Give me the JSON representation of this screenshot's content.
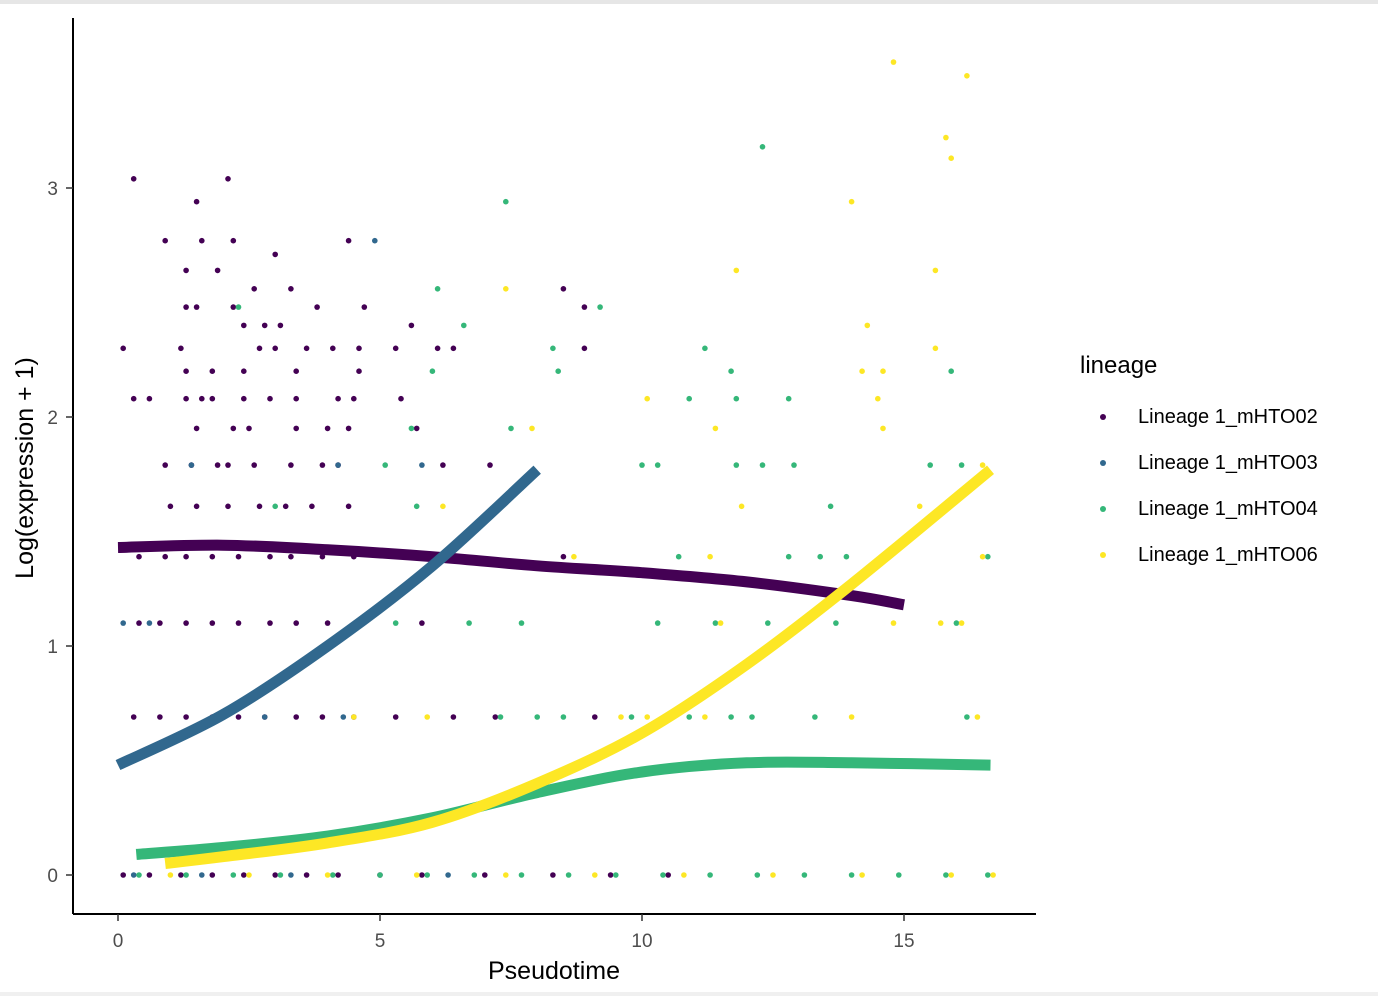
{
  "chart_data": {
    "type": "scatter",
    "title": "",
    "xlabel": "Pseudotime",
    "ylabel": "Log(expression + 1)",
    "xlim": [
      -0.85,
      17.4
    ],
    "ylim": [
      -0.17,
      3.73
    ],
    "x_ticks": [
      0,
      5,
      10,
      15
    ],
    "y_ticks": [
      0,
      1,
      2,
      3
    ],
    "grid": false,
    "legend": {
      "title": "lineage",
      "position": "right"
    },
    "series": [
      {
        "name": "Lineage 1_mHTO02",
        "color": "#440154",
        "points": [
          [
            0.3,
            3.04
          ],
          [
            1.5,
            2.94
          ],
          [
            2.1,
            3.04
          ],
          [
            0.9,
            2.77
          ],
          [
            1.6,
            2.77
          ],
          [
            2.2,
            2.77
          ],
          [
            3.0,
            2.71
          ],
          [
            1.3,
            2.64
          ],
          [
            1.9,
            2.64
          ],
          [
            2.6,
            2.56
          ],
          [
            3.3,
            2.56
          ],
          [
            4.4,
            2.77
          ],
          [
            1.3,
            2.48
          ],
          [
            1.5,
            2.48
          ],
          [
            2.2,
            2.48
          ],
          [
            3.8,
            2.48
          ],
          [
            4.7,
            2.48
          ],
          [
            8.5,
            2.56
          ],
          [
            8.9,
            2.48
          ],
          [
            0.1,
            2.3
          ],
          [
            1.2,
            2.3
          ],
          [
            2.4,
            2.4
          ],
          [
            2.8,
            2.4
          ],
          [
            3.1,
            2.4
          ],
          [
            2.7,
            2.3
          ],
          [
            3.0,
            2.3
          ],
          [
            3.6,
            2.3
          ],
          [
            4.1,
            2.3
          ],
          [
            4.6,
            2.3
          ],
          [
            5.3,
            2.3
          ],
          [
            6.4,
            2.3
          ],
          [
            8.9,
            2.3
          ],
          [
            5.6,
            2.4
          ],
          [
            6.1,
            2.3
          ],
          [
            1.3,
            2.2
          ],
          [
            1.8,
            2.2
          ],
          [
            2.4,
            2.2
          ],
          [
            3.4,
            2.2
          ],
          [
            4.6,
            2.2
          ],
          [
            0.3,
            2.08
          ],
          [
            0.6,
            2.08
          ],
          [
            1.3,
            2.08
          ],
          [
            1.6,
            2.08
          ],
          [
            1.8,
            2.08
          ],
          [
            2.4,
            2.08
          ],
          [
            2.9,
            2.08
          ],
          [
            3.4,
            2.08
          ],
          [
            4.2,
            2.08
          ],
          [
            4.5,
            2.08
          ],
          [
            5.4,
            2.08
          ],
          [
            1.5,
            1.95
          ],
          [
            2.2,
            1.95
          ],
          [
            2.5,
            1.95
          ],
          [
            3.4,
            1.95
          ],
          [
            4.0,
            1.95
          ],
          [
            4.4,
            1.95
          ],
          [
            5.7,
            1.95
          ],
          [
            0.9,
            1.79
          ],
          [
            1.4,
            1.79
          ],
          [
            1.9,
            1.79
          ],
          [
            2.1,
            1.79
          ],
          [
            2.6,
            1.79
          ],
          [
            3.3,
            1.79
          ],
          [
            3.9,
            1.79
          ],
          [
            4.2,
            1.79
          ],
          [
            6.2,
            1.79
          ],
          [
            7.1,
            1.79
          ],
          [
            1.0,
            1.61
          ],
          [
            1.5,
            1.61
          ],
          [
            2.1,
            1.61
          ],
          [
            2.7,
            1.61
          ],
          [
            3.2,
            1.61
          ],
          [
            3.7,
            1.61
          ],
          [
            4.4,
            1.61
          ],
          [
            0.4,
            1.39
          ],
          [
            0.9,
            1.39
          ],
          [
            1.3,
            1.39
          ],
          [
            1.8,
            1.39
          ],
          [
            2.3,
            1.39
          ],
          [
            2.9,
            1.39
          ],
          [
            3.3,
            1.39
          ],
          [
            3.9,
            1.39
          ],
          [
            4.5,
            1.39
          ],
          [
            8.5,
            1.39
          ],
          [
            0.4,
            1.1
          ],
          [
            0.8,
            1.1
          ],
          [
            1.3,
            1.1
          ],
          [
            1.8,
            1.1
          ],
          [
            2.3,
            1.1
          ],
          [
            2.9,
            1.1
          ],
          [
            3.4,
            1.1
          ],
          [
            4.0,
            1.1
          ],
          [
            5.8,
            1.1
          ],
          [
            0.3,
            0.69
          ],
          [
            0.8,
            0.69
          ],
          [
            1.3,
            0.69
          ],
          [
            1.8,
            0.69
          ],
          [
            2.3,
            0.69
          ],
          [
            2.8,
            0.69
          ],
          [
            3.4,
            0.69
          ],
          [
            3.9,
            0.69
          ],
          [
            4.5,
            0.69
          ],
          [
            5.3,
            0.69
          ],
          [
            6.4,
            0.69
          ],
          [
            7.2,
            0.69
          ],
          [
            9.1,
            0.69
          ],
          [
            0.1,
            0.0
          ],
          [
            0.6,
            0.0
          ],
          [
            1.2,
            0.0
          ],
          [
            1.8,
            0.0
          ],
          [
            2.4,
            0.0
          ],
          [
            3.0,
            0.0
          ],
          [
            3.6,
            0.0
          ],
          [
            4.2,
            0.0
          ],
          [
            5.0,
            0.0
          ],
          [
            5.8,
            0.0
          ],
          [
            7.0,
            0.0
          ],
          [
            8.3,
            0.0
          ],
          [
            9.4,
            0.0
          ],
          [
            10.5,
            0.0
          ]
        ]
      },
      {
        "name": "Lineage 1_mHTO03",
        "color": "#31688e",
        "points": [
          [
            4.9,
            2.77
          ],
          [
            4.2,
            1.79
          ],
          [
            5.8,
            1.79
          ],
          [
            1.4,
            1.79
          ],
          [
            0.1,
            1.1
          ],
          [
            0.6,
            1.1
          ],
          [
            4.3,
            0.69
          ],
          [
            2.8,
            0.69
          ],
          [
            0.3,
            0.0
          ],
          [
            1.6,
            0.0
          ],
          [
            3.3,
            0.0
          ],
          [
            6.3,
            0.0
          ]
        ]
      },
      {
        "name": "Lineage 1_mHTO04",
        "color": "#35b779",
        "points": [
          [
            7.4,
            2.94
          ],
          [
            12.3,
            3.18
          ],
          [
            2.3,
            2.48
          ],
          [
            6.1,
            2.56
          ],
          [
            9.2,
            2.48
          ],
          [
            6.6,
            2.4
          ],
          [
            8.3,
            2.3
          ],
          [
            11.2,
            2.3
          ],
          [
            6.0,
            2.2
          ],
          [
            8.4,
            2.2
          ],
          [
            11.7,
            2.2
          ],
          [
            15.9,
            2.2
          ],
          [
            10.9,
            2.08
          ],
          [
            11.8,
            2.08
          ],
          [
            12.8,
            2.08
          ],
          [
            7.5,
            1.95
          ],
          [
            5.6,
            1.95
          ],
          [
            5.1,
            1.79
          ],
          [
            10.0,
            1.79
          ],
          [
            10.3,
            1.79
          ],
          [
            11.8,
            1.79
          ],
          [
            12.3,
            1.79
          ],
          [
            12.9,
            1.79
          ],
          [
            15.5,
            1.79
          ],
          [
            16.1,
            1.79
          ],
          [
            3.0,
            1.61
          ],
          [
            5.7,
            1.61
          ],
          [
            13.6,
            1.61
          ],
          [
            10.7,
            1.39
          ],
          [
            12.8,
            1.39
          ],
          [
            13.4,
            1.39
          ],
          [
            13.9,
            1.39
          ],
          [
            16.6,
            1.39
          ],
          [
            5.3,
            1.1
          ],
          [
            6.7,
            1.1
          ],
          [
            7.7,
            1.1
          ],
          [
            10.3,
            1.1
          ],
          [
            11.4,
            1.1
          ],
          [
            12.4,
            1.1
          ],
          [
            13.7,
            1.1
          ],
          [
            16.0,
            1.1
          ],
          [
            7.3,
            0.69
          ],
          [
            8.0,
            0.69
          ],
          [
            8.5,
            0.69
          ],
          [
            9.8,
            0.69
          ],
          [
            10.9,
            0.69
          ],
          [
            11.7,
            0.69
          ],
          [
            12.1,
            0.69
          ],
          [
            13.3,
            0.69
          ],
          [
            16.2,
            0.69
          ],
          [
            0.4,
            0.0
          ],
          [
            1.3,
            0.0
          ],
          [
            2.2,
            0.0
          ],
          [
            3.1,
            0.0
          ],
          [
            4.1,
            0.0
          ],
          [
            5.0,
            0.0
          ],
          [
            5.9,
            0.0
          ],
          [
            6.8,
            0.0
          ],
          [
            7.7,
            0.0
          ],
          [
            8.6,
            0.0
          ],
          [
            9.5,
            0.0
          ],
          [
            10.4,
            0.0
          ],
          [
            11.3,
            0.0
          ],
          [
            12.2,
            0.0
          ],
          [
            13.1,
            0.0
          ],
          [
            14.0,
            0.0
          ],
          [
            14.9,
            0.0
          ],
          [
            15.8,
            0.0
          ],
          [
            16.6,
            0.0
          ]
        ]
      },
      {
        "name": "Lineage 1_mHTO06",
        "color": "#fde725",
        "points": [
          [
            14.8,
            3.55
          ],
          [
            16.2,
            3.49
          ],
          [
            15.8,
            3.22
          ],
          [
            15.9,
            3.13
          ],
          [
            14.0,
            2.94
          ],
          [
            11.8,
            2.64
          ],
          [
            15.6,
            2.64
          ],
          [
            7.4,
            2.56
          ],
          [
            14.3,
            2.4
          ],
          [
            15.6,
            2.3
          ],
          [
            14.2,
            2.2
          ],
          [
            14.6,
            2.2
          ],
          [
            10.1,
            2.08
          ],
          [
            14.5,
            2.08
          ],
          [
            7.9,
            1.95
          ],
          [
            11.4,
            1.95
          ],
          [
            14.6,
            1.95
          ],
          [
            16.5,
            1.79
          ],
          [
            6.2,
            1.61
          ],
          [
            11.9,
            1.61
          ],
          [
            15.3,
            1.61
          ],
          [
            16.5,
            1.39
          ],
          [
            8.7,
            1.39
          ],
          [
            11.3,
            1.39
          ],
          [
            14.8,
            1.1
          ],
          [
            15.7,
            1.1
          ],
          [
            16.1,
            1.1
          ],
          [
            11.5,
            1.1
          ],
          [
            4.5,
            0.69
          ],
          [
            5.9,
            0.69
          ],
          [
            9.6,
            0.69
          ],
          [
            10.1,
            0.69
          ],
          [
            11.2,
            0.69
          ],
          [
            14.0,
            0.69
          ],
          [
            16.4,
            0.69
          ],
          [
            1.0,
            0.0
          ],
          [
            2.5,
            0.0
          ],
          [
            4.0,
            0.0
          ],
          [
            5.7,
            0.0
          ],
          [
            7.4,
            0.0
          ],
          [
            9.1,
            0.0
          ],
          [
            10.8,
            0.0
          ],
          [
            12.5,
            0.0
          ],
          [
            14.2,
            0.0
          ],
          [
            15.9,
            0.0
          ],
          [
            16.7,
            0.0
          ]
        ]
      }
    ],
    "smooth_lines": [
      {
        "name": "Lineage 1_mHTO02",
        "color": "#440154",
        "points": [
          [
            0,
            1.43
          ],
          [
            2,
            1.44
          ],
          [
            4,
            1.42
          ],
          [
            6,
            1.39
          ],
          [
            8,
            1.35
          ],
          [
            10,
            1.32
          ],
          [
            12,
            1.28
          ],
          [
            14,
            1.22
          ],
          [
            15,
            1.18
          ]
        ]
      },
      {
        "name": "Lineage 1_mHTO03",
        "color": "#31688e",
        "points": [
          [
            0,
            0.48
          ],
          [
            2,
            0.7
          ],
          [
            4,
            1.0
          ],
          [
            6,
            1.35
          ],
          [
            8,
            1.77
          ]
        ]
      },
      {
        "name": "Lineage 1_mHTO04",
        "color": "#35b779",
        "points": [
          [
            0.35,
            0.09
          ],
          [
            2,
            0.12
          ],
          [
            4,
            0.17
          ],
          [
            6,
            0.25
          ],
          [
            8,
            0.36
          ],
          [
            10,
            0.45
          ],
          [
            12,
            0.49
          ],
          [
            14,
            0.49
          ],
          [
            16.65,
            0.48
          ]
        ]
      },
      {
        "name": "Lineage 1_mHTO06",
        "color": "#fde725",
        "points": [
          [
            0.9,
            0.05
          ],
          [
            2,
            0.08
          ],
          [
            4,
            0.14
          ],
          [
            6,
            0.23
          ],
          [
            8,
            0.4
          ],
          [
            10,
            0.62
          ],
          [
            12,
            0.92
          ],
          [
            14,
            1.27
          ],
          [
            16.65,
            1.77
          ]
        ]
      }
    ]
  }
}
